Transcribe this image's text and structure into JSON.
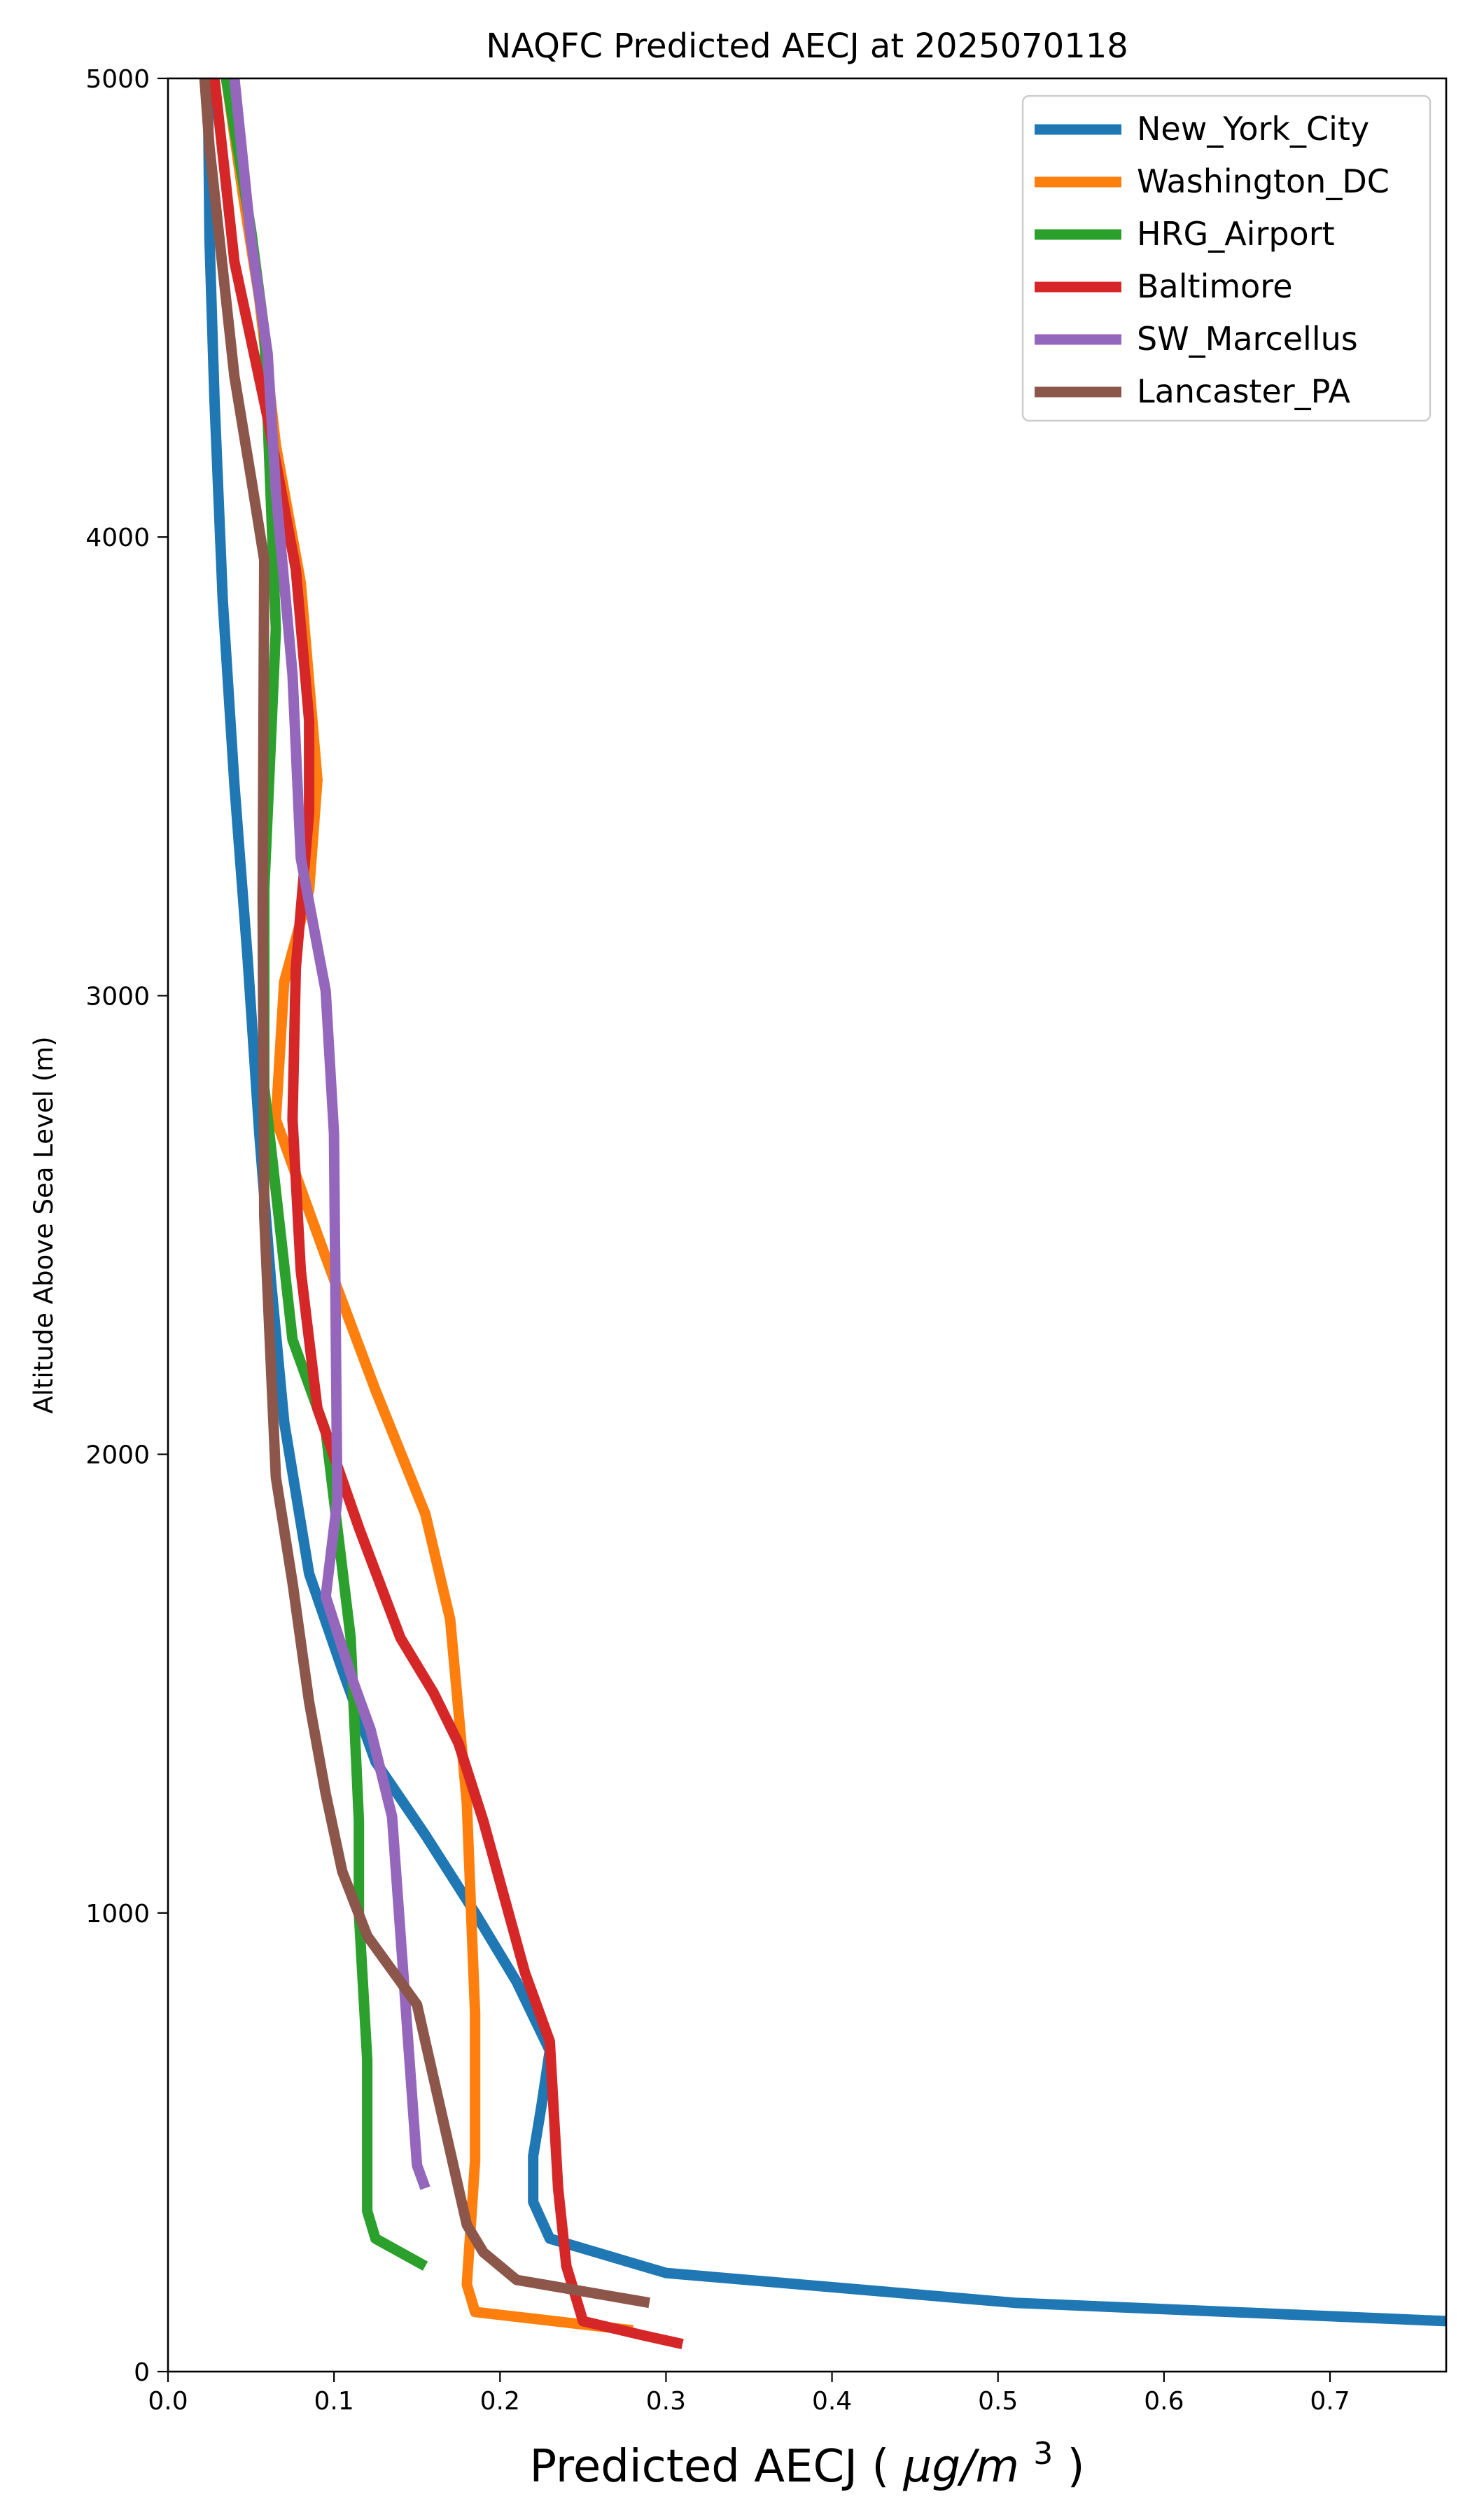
{
  "chart_data": {
    "type": "line",
    "title": "NAQFC Predicted AECJ at 2025070118",
    "xlabel": "Predicted AECJ",
    "xlabel_unit_base": "μg/m",
    "xlabel_unit_exp": "3",
    "ylabel": "Altitude Above Sea Level (m)",
    "xlim": [
      0,
      0.77
    ],
    "ylim": [
      0,
      5000
    ],
    "x_ticks": [
      0.0,
      0.1,
      0.2,
      0.3,
      0.4,
      0.5,
      0.6,
      0.7
    ],
    "x_tick_labels": [
      "0.0",
      "0.1",
      "0.2",
      "0.3",
      "0.4",
      "0.5",
      "0.6",
      "0.7"
    ],
    "y_ticks": [
      0,
      1000,
      2000,
      3000,
      4000,
      5000
    ],
    "y_tick_labels": [
      "0",
      "1000",
      "2000",
      "3000",
      "4000",
      "5000"
    ],
    "grid": false,
    "legend_position": "top-right",
    "series": [
      {
        "name": "New_York_City",
        "color": "#1f77b4",
        "x": [
          0.77,
          0.51,
          0.3,
          0.23,
          0.22,
          0.22,
          0.225,
          0.23,
          0.21,
          0.185,
          0.155,
          0.125,
          0.105,
          0.085,
          0.07,
          0.062,
          0.055,
          0.048,
          0.04,
          0.033,
          0.028,
          0.025,
          0.024
        ],
        "y": [
          110,
          150,
          215,
          290,
          370,
          470,
          580,
          700,
          850,
          1000,
          1170,
          1330,
          1530,
          1740,
          2070,
          2380,
          2700,
          3080,
          3460,
          3860,
          4300,
          4650,
          5000
        ]
      },
      {
        "name": "Washington_DC",
        "color": "#ff7f0e",
        "x": [
          0.28,
          0.185,
          0.18,
          0.185,
          0.185,
          0.18,
          0.17,
          0.155,
          0.125,
          0.095,
          0.065,
          0.07,
          0.085,
          0.09,
          0.08,
          0.065,
          0.055,
          0.045,
          0.035
        ],
        "y": [
          90,
          130,
          190,
          460,
          780,
          1240,
          1640,
          1870,
          2140,
          2430,
          2730,
          3030,
          3230,
          3470,
          3900,
          4200,
          4520,
          4750,
          5000
        ]
      },
      {
        "name": "HRG_Airport",
        "color": "#2ca02c",
        "x": [
          0.155,
          0.125,
          0.12,
          0.12,
          0.115,
          0.115,
          0.11,
          0.095,
          0.075,
          0.058,
          0.058,
          0.065,
          0.058,
          0.05,
          0.035
        ],
        "y": [
          230,
          290,
          350,
          680,
          1000,
          1200,
          1600,
          2050,
          2250,
          2800,
          3230,
          3800,
          4450,
          4670,
          5000
        ]
      },
      {
        "name": "Baltimore",
        "color": "#d62728",
        "x": [
          0.31,
          0.285,
          0.25,
          0.24,
          0.235,
          0.23,
          0.215,
          0.19,
          0.175,
          0.16,
          0.14,
          0.115,
          0.09,
          0.08,
          0.075,
          0.077,
          0.085,
          0.085,
          0.077,
          0.06,
          0.04,
          0.028
        ],
        "y": [
          60,
          80,
          110,
          230,
          400,
          720,
          870,
          1200,
          1370,
          1480,
          1600,
          1840,
          2100,
          2400,
          2730,
          3060,
          3400,
          3600,
          3930,
          4260,
          4600,
          5000
        ]
      },
      {
        "name": "SW_Marcellus",
        "color": "#9467bd",
        "x": [
          0.155,
          0.15,
          0.135,
          0.122,
          0.112,
          0.095,
          0.102,
          0.1,
          0.095,
          0.08,
          0.075,
          0.065,
          0.06,
          0.05,
          0.04
        ],
        "y": [
          400,
          450,
          1210,
          1400,
          1500,
          1690,
          1900,
          2700,
          3010,
          3300,
          3700,
          4100,
          4400,
          4650,
          5000
        ]
      },
      {
        "name": "Lancaster_PA",
        "color": "#8c564b",
        "x": [
          0.29,
          0.21,
          0.19,
          0.18,
          0.16,
          0.15,
          0.12,
          0.105,
          0.095,
          0.085,
          0.075,
          0.065,
          0.058,
          0.057,
          0.058,
          0.05,
          0.04,
          0.025,
          0.022
        ],
        "y": [
          150,
          200,
          260,
          320,
          640,
          800,
          950,
          1090,
          1260,
          1460,
          1720,
          1950,
          2520,
          3200,
          3950,
          4130,
          4350,
          4850,
          5000
        ]
      }
    ]
  }
}
